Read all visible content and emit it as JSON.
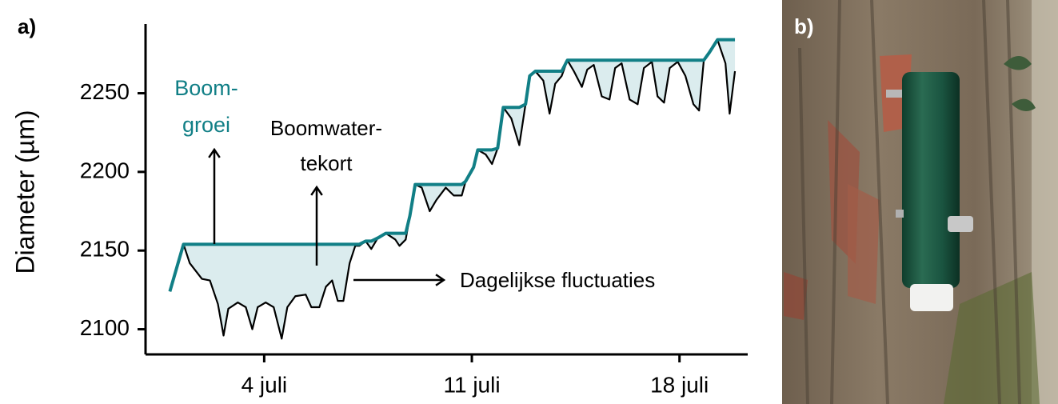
{
  "chart_data": {
    "type": "line",
    "panel_label": "a)",
    "y_label": "Diameter (µm)",
    "x": [
      0.82,
      1.28,
      1.49,
      1.9,
      2.17,
      2.44,
      2.63,
      2.79,
      3.11,
      3.38,
      3.6,
      3.78,
      4.05,
      4.32,
      4.59,
      4.78,
      5.05,
      5.4,
      5.59,
      5.86,
      6.08,
      6.29,
      6.48,
      6.67,
      6.88,
      7.07,
      7.21,
      7.42,
      7.61,
      7.83,
      8.1,
      8.42,
      8.56,
      8.77,
      8.91,
      9.09,
      9.31,
      9.58,
      9.8,
      10.12,
      10.39,
      10.66,
      10.79,
      11.06,
      11.2,
      11.47,
      11.68,
      11.87,
      12.06,
      12.33,
      12.6,
      12.81,
      12.95,
      13.14,
      13.41,
      13.62,
      13.81,
      14.03,
      14.22,
      14.44,
      14.71,
      14.89,
      15.11,
      15.38,
      15.64,
      15.83,
      16.05,
      16.32,
      16.59,
      16.8,
      17.07,
      17.26,
      17.48,
      17.67,
      17.94,
      18.2,
      18.47,
      18.66,
      18.82,
      19.01,
      19.28,
      19.55,
      19.69,
      19.87
    ],
    "series": [
      {
        "color": "#000000",
        "values": [
          2124,
          2154,
          2142,
          2132,
          2131,
          2116,
          2096,
          2113,
          2117,
          2114,
          2100,
          2114,
          2117,
          2114,
          2094,
          2114,
          2121,
          2122,
          2114,
          2114,
          2127,
          2131,
          2118,
          2118,
          2142,
          2153,
          2153,
          2156,
          2151,
          2158,
          2161,
          2157,
          2153,
          2157,
          2172,
          2192,
          2190,
          2175,
          2182,
          2190,
          2185,
          2185,
          2194,
          2203,
          2214,
          2211,
          2205,
          2215,
          2241,
          2234,
          2217,
          2243,
          2261,
          2264,
          2258,
          2237,
          2256,
          2261,
          2271,
          2264,
          2254,
          2265,
          2268,
          2248,
          2246,
          2266,
          2269,
          2246,
          2243,
          2266,
          2270,
          2248,
          2244,
          2266,
          2270,
          2261,
          2243,
          2239,
          2271,
          2276,
          2284,
          2269,
          2237,
          2264
        ]
      },
      {
        "color": "#117f86",
        "values": [
          2124,
          2154,
          2154,
          2154,
          2154,
          2154,
          2154,
          2154,
          2154,
          2154,
          2154,
          2154,
          2154,
          2154,
          2154,
          2154,
          2154,
          2154,
          2154,
          2154,
          2154,
          2154,
          2154,
          2154,
          2154,
          2154,
          2154,
          2156,
          2156,
          2158,
          2161,
          2161,
          2161,
          2161,
          2172,
          2192,
          2192,
          2192,
          2192,
          2192,
          2192,
          2192,
          2194,
          2203,
          2214,
          2214,
          2214,
          2215,
          2241,
          2241,
          2241,
          2243,
          2261,
          2264,
          2264,
          2264,
          2264,
          2264,
          2271,
          2271,
          2271,
          2271,
          2271,
          2271,
          2271,
          2271,
          2271,
          2271,
          2271,
          2271,
          2271,
          2271,
          2271,
          2271,
          2271,
          2271,
          2271,
          2271,
          2271,
          2276,
          2284,
          2284,
          2284,
          2284
        ]
      }
    ],
    "fill_color": "#dbecee",
    "xlim": [
      0,
      20.3
    ],
    "ylim": [
      2084,
      2294
    ],
    "xticks": [
      {
        "value": 4,
        "label": "4 juli"
      },
      {
        "value": 11,
        "label": "11 juli"
      },
      {
        "value": 18,
        "label": "18 juli"
      }
    ],
    "yticks": [
      2100,
      2150,
      2200,
      2250
    ],
    "annotations": [
      {
        "lines": [
          "Boom-",
          "groei"
        ],
        "color": "#117f86"
      },
      {
        "lines": [
          "Boomwater-",
          "tekort"
        ],
        "color": "#000000"
      },
      {
        "lines": [
          "Dagelijkse fluctuaties"
        ],
        "color": "#000000"
      }
    ]
  },
  "photo": {
    "panel_label": "b)"
  }
}
